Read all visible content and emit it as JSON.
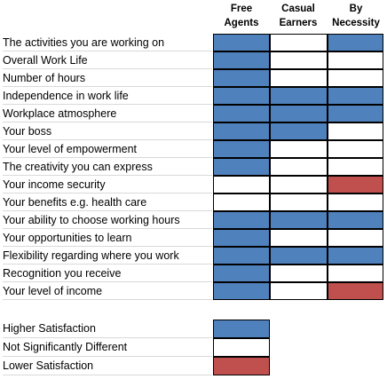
{
  "colors": {
    "higher": "#4f81bd",
    "not_different": "#ffffff",
    "lower": "#c0504d"
  },
  "columns": [
    {
      "label": "Free\nAgents"
    },
    {
      "label": "Casual\nEarners"
    },
    {
      "label": "By\nNecessity"
    }
  ],
  "rows": [
    {
      "label": "The activities you are working on",
      "cells": [
        "higher",
        "not_different",
        "higher"
      ]
    },
    {
      "label": "Overall Work Life",
      "cells": [
        "higher",
        "not_different",
        "not_different"
      ]
    },
    {
      "label": "Number of hours",
      "cells": [
        "higher",
        "not_different",
        "not_different"
      ]
    },
    {
      "label": "Independence in work life",
      "cells": [
        "higher",
        "higher",
        "higher"
      ]
    },
    {
      "label": "Workplace atmosphere",
      "cells": [
        "higher",
        "higher",
        "higher"
      ]
    },
    {
      "label": "Your boss",
      "cells": [
        "higher",
        "higher",
        "not_different"
      ]
    },
    {
      "label": "Your level of empowerment",
      "cells": [
        "higher",
        "not_different",
        "not_different"
      ]
    },
    {
      "label": "The creativity you can express",
      "cells": [
        "higher",
        "not_different",
        "not_different"
      ]
    },
    {
      "label": "Your income security",
      "cells": [
        "not_different",
        "not_different",
        "lower"
      ]
    },
    {
      "label": "Your benefits e.g. health care",
      "cells": [
        "not_different",
        "not_different",
        "not_different"
      ]
    },
    {
      "label": "Your ability to choose working hours",
      "cells": [
        "higher",
        "higher",
        "higher"
      ]
    },
    {
      "label": "Your opportunities to learn",
      "cells": [
        "higher",
        "not_different",
        "not_different"
      ]
    },
    {
      "label": "Flexibility regarding where you work",
      "cells": [
        "higher",
        "higher",
        "higher"
      ]
    },
    {
      "label": "Recognition you receive",
      "cells": [
        "higher",
        "not_different",
        "not_different"
      ]
    },
    {
      "label": "Your level of income",
      "cells": [
        "higher",
        "not_different",
        "lower"
      ]
    }
  ],
  "legend": [
    {
      "label": "Higher Satisfaction",
      "key": "higher"
    },
    {
      "label": "Not Significantly Different",
      "key": "not_different"
    },
    {
      "label": "Lower Satisfaction",
      "key": "lower"
    }
  ]
}
